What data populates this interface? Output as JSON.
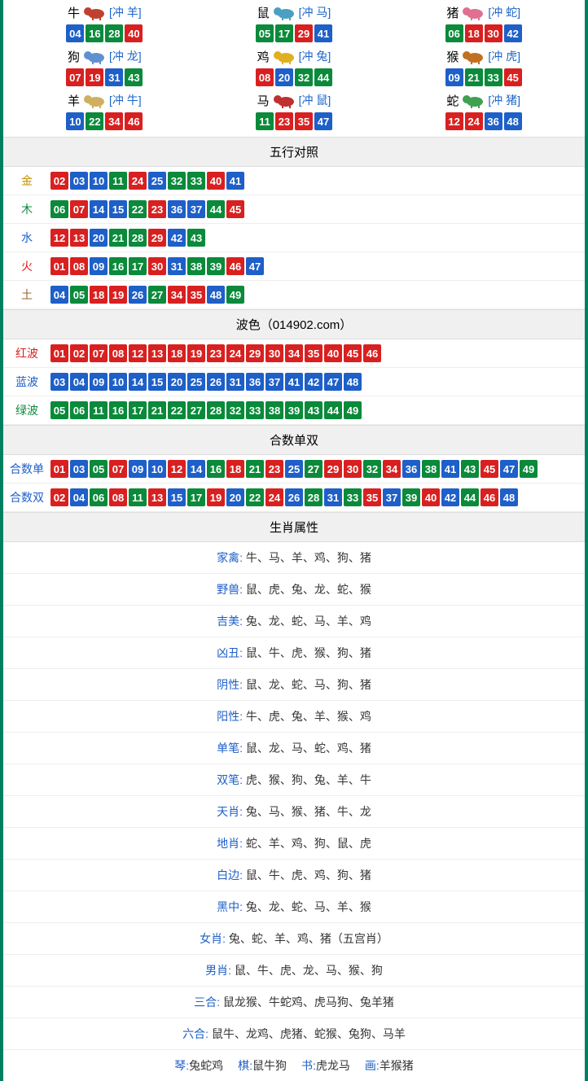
{
  "colors": {
    "border": "#008060",
    "red": "#d92020",
    "blue": "#1e5fc8",
    "green": "#0a8a3a",
    "gold": "#c09000",
    "earth": "#996633",
    "headerBg": "#f0f0f0"
  },
  "ballColorMap": {
    "red": [
      1,
      2,
      7,
      8,
      12,
      13,
      18,
      19,
      23,
      24,
      29,
      30,
      34,
      35,
      40,
      45,
      46
    ],
    "blue": [
      3,
      4,
      9,
      10,
      14,
      15,
      20,
      25,
      26,
      31,
      36,
      37,
      41,
      42,
      47,
      48
    ],
    "green": [
      5,
      6,
      11,
      16,
      17,
      21,
      22,
      27,
      28,
      32,
      33,
      38,
      39,
      43,
      44,
      49
    ]
  },
  "zodiacIconColors": {
    "牛": "#c04030",
    "鼠": "#4aa0c0",
    "猪": "#e07090",
    "狗": "#6090d0",
    "鸡": "#e0b020",
    "猴": "#c07020",
    "羊": "#d0b060",
    "马": "#c03030",
    "蛇": "#40a050"
  },
  "zodiac": [
    {
      "name": "牛",
      "chong": "[冲 羊]",
      "balls": [
        4,
        16,
        28,
        40
      ]
    },
    {
      "name": "鼠",
      "chong": "[冲 马]",
      "balls": [
        5,
        17,
        29,
        41
      ]
    },
    {
      "name": "猪",
      "chong": "[冲 蛇]",
      "balls": [
        6,
        18,
        30,
        42
      ]
    },
    {
      "name": "狗",
      "chong": "[冲 龙]",
      "balls": [
        7,
        19,
        31,
        43
      ]
    },
    {
      "name": "鸡",
      "chong": "[冲 兔]",
      "balls": [
        8,
        20,
        32,
        44
      ]
    },
    {
      "name": "猴",
      "chong": "[冲 虎]",
      "balls": [
        9,
        21,
        33,
        45
      ]
    },
    {
      "name": "羊",
      "chong": "[冲 牛]",
      "balls": [
        10,
        22,
        34,
        46
      ]
    },
    {
      "name": "马",
      "chong": "[冲 鼠]",
      "balls": [
        11,
        23,
        35,
        47
      ]
    },
    {
      "name": "蛇",
      "chong": "[冲 猪]",
      "balls": [
        12,
        24,
        36,
        48
      ]
    }
  ],
  "sections": {
    "wuxing": {
      "title": "五行对照",
      "rows": [
        {
          "label": "金",
          "cls": "c-gold",
          "balls": [
            2,
            3,
            10,
            11,
            24,
            25,
            32,
            33,
            40,
            41
          ]
        },
        {
          "label": "木",
          "cls": "c-wood",
          "balls": [
            6,
            7,
            14,
            15,
            22,
            23,
            36,
            37,
            44,
            45
          ]
        },
        {
          "label": "水",
          "cls": "c-water",
          "balls": [
            12,
            13,
            20,
            21,
            28,
            29,
            42,
            43
          ]
        },
        {
          "label": "火",
          "cls": "c-fire",
          "balls": [
            1,
            8,
            9,
            16,
            17,
            30,
            31,
            38,
            39,
            46,
            47
          ]
        },
        {
          "label": "土",
          "cls": "c-earth",
          "balls": [
            4,
            5,
            18,
            19,
            26,
            27,
            34,
            35,
            48,
            49
          ]
        }
      ]
    },
    "bose": {
      "title": "波色（014902.com）",
      "rows": [
        {
          "label": "红波",
          "cls": "c-redwave",
          "balls": [
            1,
            2,
            7,
            8,
            12,
            13,
            18,
            19,
            23,
            24,
            29,
            30,
            34,
            35,
            40,
            45,
            46
          ]
        },
        {
          "label": "蓝波",
          "cls": "c-bluewave",
          "balls": [
            3,
            4,
            9,
            10,
            14,
            15,
            20,
            25,
            26,
            31,
            36,
            37,
            41,
            42,
            47,
            48
          ]
        },
        {
          "label": "绿波",
          "cls": "c-greenwave",
          "balls": [
            5,
            6,
            11,
            16,
            17,
            21,
            22,
            27,
            28,
            32,
            33,
            38,
            39,
            43,
            44,
            49
          ]
        }
      ]
    },
    "heshu": {
      "title": "合数单双",
      "rows": [
        {
          "label": "合数单",
          "cls": "c-heshu",
          "balls": [
            1,
            3,
            5,
            7,
            9,
            10,
            12,
            14,
            16,
            18,
            21,
            23,
            25,
            27,
            29,
            30,
            32,
            34,
            36,
            38,
            41,
            43,
            45,
            47,
            49
          ]
        },
        {
          "label": "合数双",
          "cls": "c-heshu",
          "balls": [
            2,
            4,
            6,
            8,
            11,
            13,
            15,
            17,
            19,
            20,
            22,
            24,
            26,
            28,
            31,
            33,
            35,
            37,
            39,
            40,
            42,
            44,
            46,
            48
          ]
        }
      ]
    },
    "shengxiao": {
      "title": "生肖属性",
      "rows": [
        {
          "label": "家禽",
          "value": "牛、马、羊、鸡、狗、猪"
        },
        {
          "label": "野兽",
          "value": "鼠、虎、兔、龙、蛇、猴"
        },
        {
          "label": "吉美",
          "value": "兔、龙、蛇、马、羊、鸡"
        },
        {
          "label": "凶丑",
          "value": "鼠、牛、虎、猴、狗、猪"
        },
        {
          "label": "阴性",
          "value": "鼠、龙、蛇、马、狗、猪"
        },
        {
          "label": "阳性",
          "value": "牛、虎、兔、羊、猴、鸡"
        },
        {
          "label": "单笔",
          "value": "鼠、龙、马、蛇、鸡、猪"
        },
        {
          "label": "双笔",
          "value": "虎、猴、狗、兔、羊、牛"
        },
        {
          "label": "天肖",
          "value": "兔、马、猴、猪、牛、龙"
        },
        {
          "label": "地肖",
          "value": "蛇、羊、鸡、狗、鼠、虎"
        },
        {
          "label": "白边",
          "value": "鼠、牛、虎、鸡、狗、猪"
        },
        {
          "label": "黑中",
          "value": "兔、龙、蛇、马、羊、猴"
        },
        {
          "label": "女肖",
          "value": "兔、蛇、羊、鸡、猪（五宫肖）"
        },
        {
          "label": "男肖",
          "value": "鼠、牛、虎、龙、马、猴、狗"
        },
        {
          "label": "三合",
          "value": "鼠龙猴、牛蛇鸡、虎马狗、兔羊猪"
        },
        {
          "label": "六合",
          "value": "鼠牛、龙鸡、虎猪、蛇猴、兔狗、马羊"
        }
      ],
      "bottom": [
        {
          "label": "琴:",
          "value": "兔蛇鸡"
        },
        {
          "label": "棋:",
          "value": "鼠牛狗"
        },
        {
          "label": "书:",
          "value": "虎龙马"
        },
        {
          "label": "画:",
          "value": "羊猴猪"
        }
      ]
    }
  }
}
